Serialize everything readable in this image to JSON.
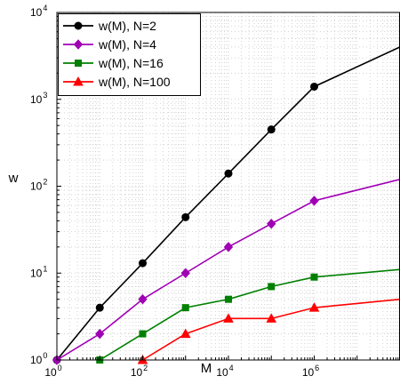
{
  "chart_data": {
    "type": "line",
    "x_scale": "log",
    "y_scale": "log",
    "xlim": [
      1,
      100000000
    ],
    "ylim": [
      1,
      10000
    ],
    "xlabel": "M",
    "ylabel": "w",
    "grid": true,
    "grid_style": "dotted",
    "legend_position": "top-left",
    "x_tick_labels": [
      {
        "value": 1,
        "base": "10",
        "exp": "0"
      },
      {
        "value": 100,
        "base": "10",
        "exp": "2"
      },
      {
        "value": 10000,
        "base": "10",
        "exp": "4"
      },
      {
        "value": 1000000,
        "base": "10",
        "exp": "6"
      }
    ],
    "y_tick_labels": [
      {
        "value": 1,
        "base": "10",
        "exp": "0"
      },
      {
        "value": 10,
        "base": "10",
        "exp": "1"
      },
      {
        "value": 100,
        "base": "10",
        "exp": "2"
      },
      {
        "value": 1000,
        "base": "10",
        "exp": "3"
      },
      {
        "value": 10000,
        "base": "10",
        "exp": "4"
      }
    ],
    "series": [
      {
        "name": "w(M), N=2",
        "color": "#000000",
        "marker": "circle",
        "x": [
          1,
          10,
          100,
          1000,
          10000,
          100000,
          1000000,
          100000000
        ],
        "y": [
          1,
          4,
          13,
          44,
          140,
          450,
          1400,
          4000
        ]
      },
      {
        "name": "w(M), N=4",
        "color": "#a000b4",
        "marker": "diamond",
        "x": [
          1,
          10,
          100,
          1000,
          10000,
          100000,
          1000000,
          100000000
        ],
        "y": [
          1,
          2,
          5,
          10,
          20,
          37,
          68,
          120
        ]
      },
      {
        "name": "w(M), N=16",
        "color": "#008000",
        "marker": "square",
        "x": [
          10,
          100,
          1000,
          10000,
          100000,
          1000000,
          100000000
        ],
        "y": [
          1,
          2,
          4,
          5,
          7,
          9,
          11
        ]
      },
      {
        "name": "w(M), N=100",
        "color": "#ff0000",
        "marker": "triangle",
        "x": [
          100,
          1000,
          10000,
          100000,
          1000000,
          100000000
        ],
        "y": [
          1,
          2,
          3,
          3,
          4,
          5
        ]
      }
    ]
  }
}
